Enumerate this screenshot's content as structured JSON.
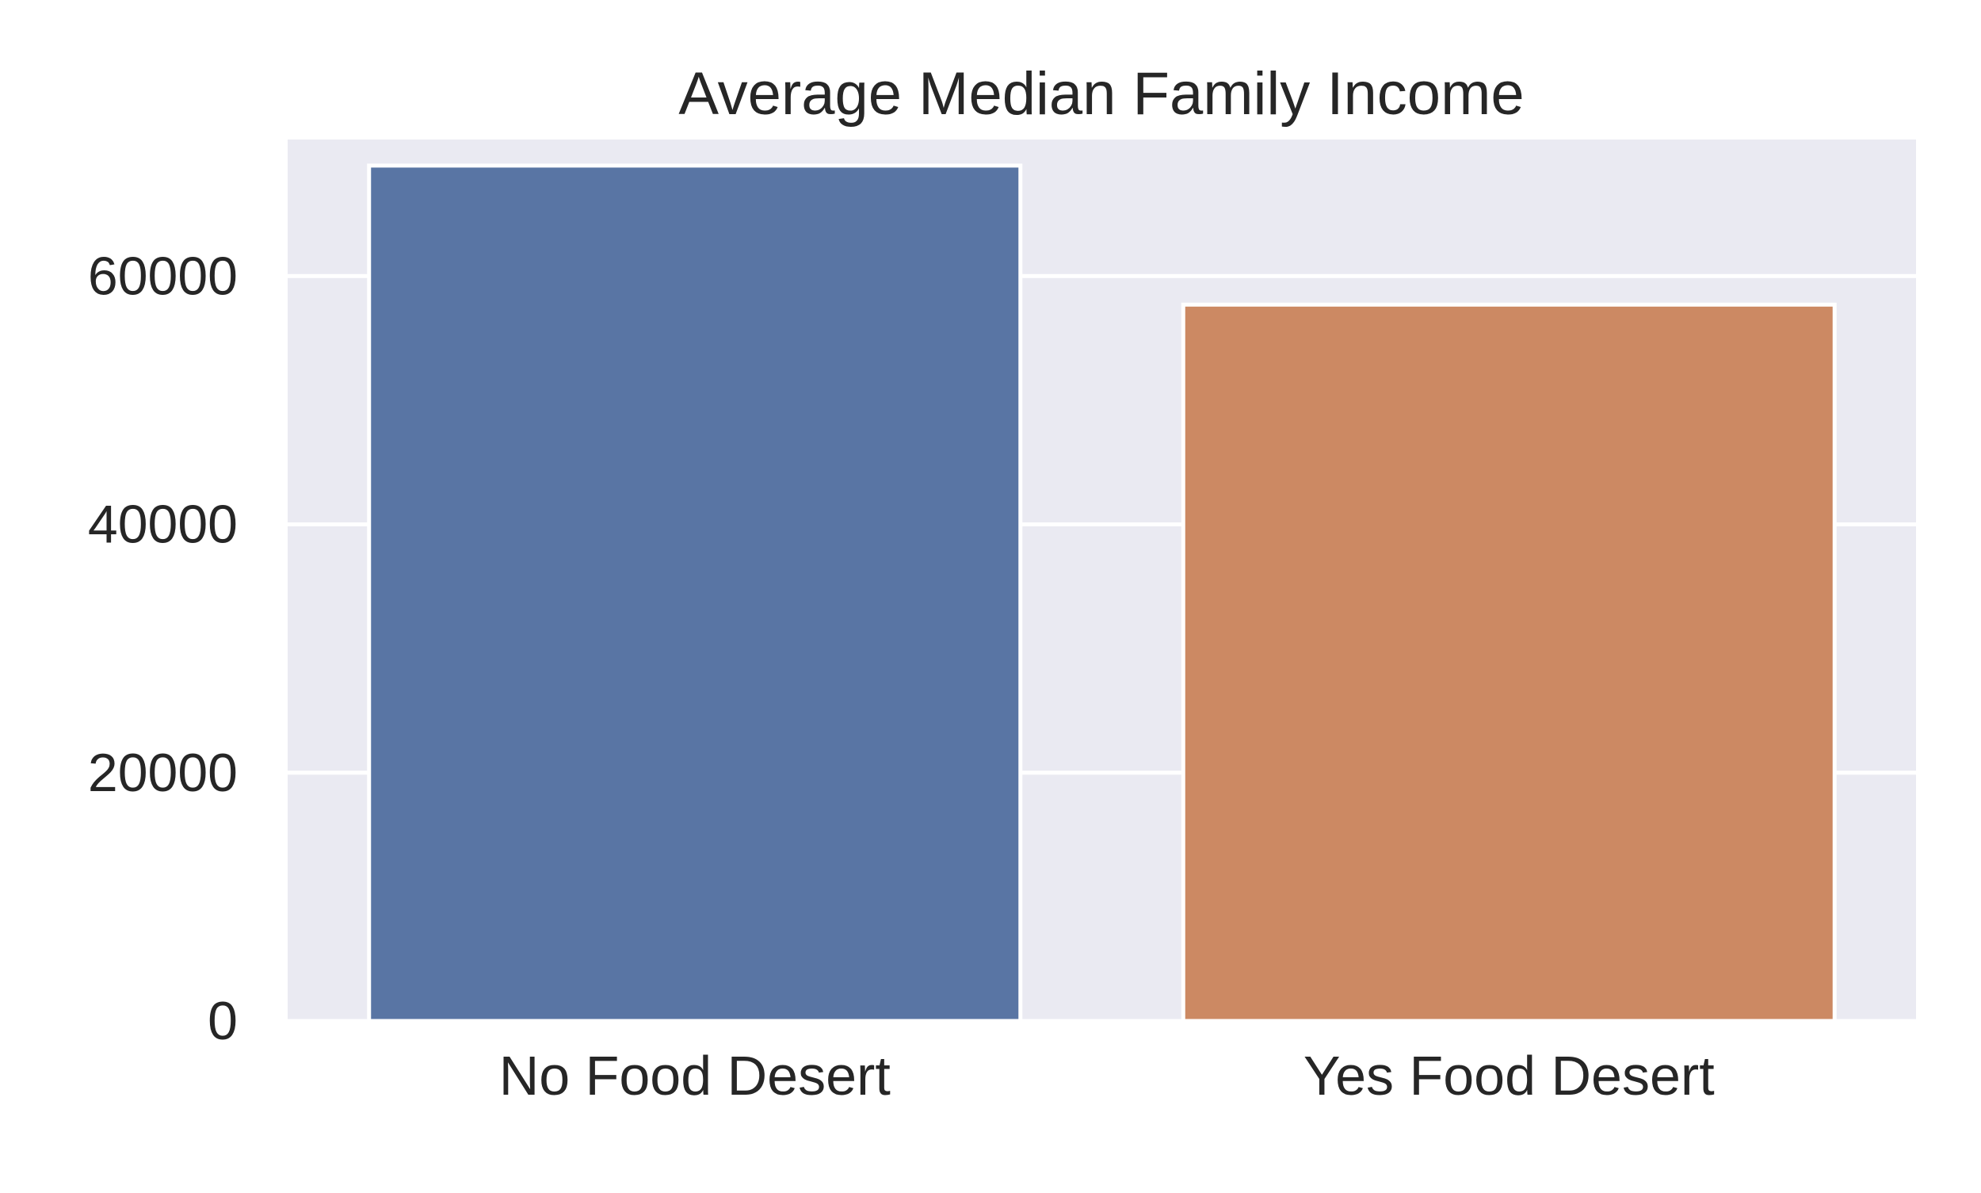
{
  "chart_data": {
    "type": "bar",
    "title": "Average Median Family Income",
    "xlabel": "",
    "ylabel": "",
    "categories": [
      "No Food Desert",
      "Yes Food Desert"
    ],
    "values": [
      68900,
      57700
    ],
    "ylim": [
      0,
      71000
    ],
    "yticks": [
      0,
      20000,
      40000,
      60000
    ],
    "ytick_labels": [
      "0",
      "20000",
      "40000",
      "60000"
    ],
    "grid": true,
    "colors": {
      "plot_background": "#eaeaf2",
      "grid": "#ffffff",
      "bar_edge": "#ffffff",
      "bars": [
        "#5975a4",
        "#cc8963"
      ]
    }
  }
}
